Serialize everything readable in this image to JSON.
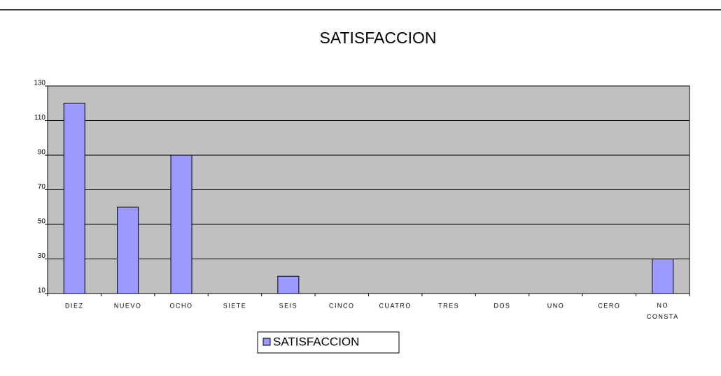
{
  "chart_data": {
    "type": "bar",
    "title": "SATISFACCION",
    "categories": [
      "DIEZ",
      "NUEVO",
      "OCHO",
      "SIETE",
      "SEIS",
      "CINCO",
      "CUATRO",
      "TRES",
      "DOS",
      "UNO",
      "CERO",
      "NO CONSTA"
    ],
    "series": [
      {
        "name": "SATISFACCION",
        "color": "#9999ff",
        "values": [
          120,
          60,
          90,
          0,
          20,
          0,
          0,
          0,
          0,
          0,
          0,
          30
        ]
      }
    ],
    "ylim": [
      10,
      130
    ],
    "yticks": [
      10,
      30,
      50,
      70,
      90,
      110,
      130
    ],
    "grid": true,
    "legend": "bottom"
  }
}
